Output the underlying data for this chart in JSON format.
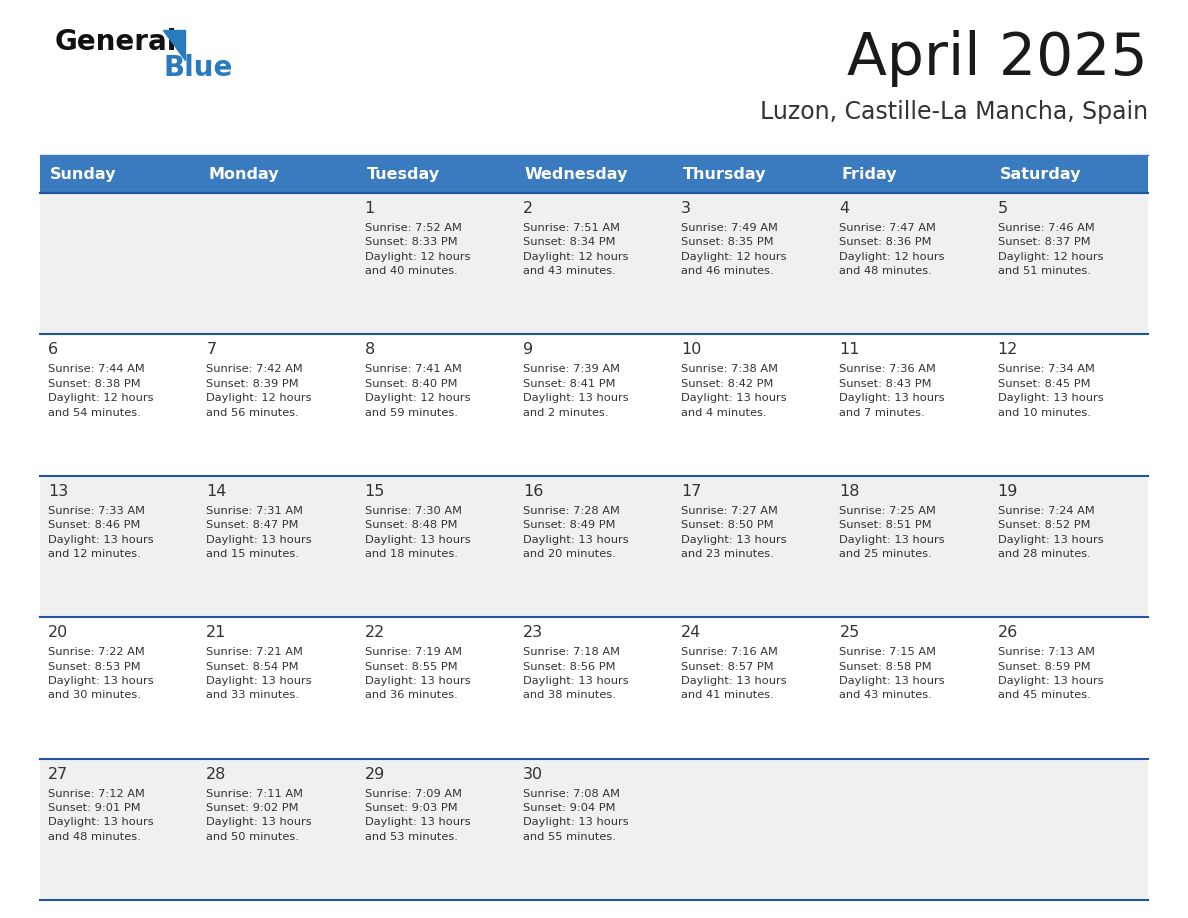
{
  "title": "April 2025",
  "subtitle": "Luzon, Castille-La Mancha, Spain",
  "header_bg": "#3a7abf",
  "header_text": "#ffffff",
  "row_bg_odd": "#f0f0f0",
  "row_bg_even": "#ffffff",
  "separator_color": "#2255a0",
  "text_color": "#333333",
  "days_of_week": [
    "Sunday",
    "Monday",
    "Tuesday",
    "Wednesday",
    "Thursday",
    "Friday",
    "Saturday"
  ],
  "weeks": [
    [
      {
        "day": "",
        "info": ""
      },
      {
        "day": "",
        "info": ""
      },
      {
        "day": "1",
        "info": "Sunrise: 7:52 AM\nSunset: 8:33 PM\nDaylight: 12 hours\nand 40 minutes."
      },
      {
        "day": "2",
        "info": "Sunrise: 7:51 AM\nSunset: 8:34 PM\nDaylight: 12 hours\nand 43 minutes."
      },
      {
        "day": "3",
        "info": "Sunrise: 7:49 AM\nSunset: 8:35 PM\nDaylight: 12 hours\nand 46 minutes."
      },
      {
        "day": "4",
        "info": "Sunrise: 7:47 AM\nSunset: 8:36 PM\nDaylight: 12 hours\nand 48 minutes."
      },
      {
        "day": "5",
        "info": "Sunrise: 7:46 AM\nSunset: 8:37 PM\nDaylight: 12 hours\nand 51 minutes."
      }
    ],
    [
      {
        "day": "6",
        "info": "Sunrise: 7:44 AM\nSunset: 8:38 PM\nDaylight: 12 hours\nand 54 minutes."
      },
      {
        "day": "7",
        "info": "Sunrise: 7:42 AM\nSunset: 8:39 PM\nDaylight: 12 hours\nand 56 minutes."
      },
      {
        "day": "8",
        "info": "Sunrise: 7:41 AM\nSunset: 8:40 PM\nDaylight: 12 hours\nand 59 minutes."
      },
      {
        "day": "9",
        "info": "Sunrise: 7:39 AM\nSunset: 8:41 PM\nDaylight: 13 hours\nand 2 minutes."
      },
      {
        "day": "10",
        "info": "Sunrise: 7:38 AM\nSunset: 8:42 PM\nDaylight: 13 hours\nand 4 minutes."
      },
      {
        "day": "11",
        "info": "Sunrise: 7:36 AM\nSunset: 8:43 PM\nDaylight: 13 hours\nand 7 minutes."
      },
      {
        "day": "12",
        "info": "Sunrise: 7:34 AM\nSunset: 8:45 PM\nDaylight: 13 hours\nand 10 minutes."
      }
    ],
    [
      {
        "day": "13",
        "info": "Sunrise: 7:33 AM\nSunset: 8:46 PM\nDaylight: 13 hours\nand 12 minutes."
      },
      {
        "day": "14",
        "info": "Sunrise: 7:31 AM\nSunset: 8:47 PM\nDaylight: 13 hours\nand 15 minutes."
      },
      {
        "day": "15",
        "info": "Sunrise: 7:30 AM\nSunset: 8:48 PM\nDaylight: 13 hours\nand 18 minutes."
      },
      {
        "day": "16",
        "info": "Sunrise: 7:28 AM\nSunset: 8:49 PM\nDaylight: 13 hours\nand 20 minutes."
      },
      {
        "day": "17",
        "info": "Sunrise: 7:27 AM\nSunset: 8:50 PM\nDaylight: 13 hours\nand 23 minutes."
      },
      {
        "day": "18",
        "info": "Sunrise: 7:25 AM\nSunset: 8:51 PM\nDaylight: 13 hours\nand 25 minutes."
      },
      {
        "day": "19",
        "info": "Sunrise: 7:24 AM\nSunset: 8:52 PM\nDaylight: 13 hours\nand 28 minutes."
      }
    ],
    [
      {
        "day": "20",
        "info": "Sunrise: 7:22 AM\nSunset: 8:53 PM\nDaylight: 13 hours\nand 30 minutes."
      },
      {
        "day": "21",
        "info": "Sunrise: 7:21 AM\nSunset: 8:54 PM\nDaylight: 13 hours\nand 33 minutes."
      },
      {
        "day": "22",
        "info": "Sunrise: 7:19 AM\nSunset: 8:55 PM\nDaylight: 13 hours\nand 36 minutes."
      },
      {
        "day": "23",
        "info": "Sunrise: 7:18 AM\nSunset: 8:56 PM\nDaylight: 13 hours\nand 38 minutes."
      },
      {
        "day": "24",
        "info": "Sunrise: 7:16 AM\nSunset: 8:57 PM\nDaylight: 13 hours\nand 41 minutes."
      },
      {
        "day": "25",
        "info": "Sunrise: 7:15 AM\nSunset: 8:58 PM\nDaylight: 13 hours\nand 43 minutes."
      },
      {
        "day": "26",
        "info": "Sunrise: 7:13 AM\nSunset: 8:59 PM\nDaylight: 13 hours\nand 45 minutes."
      }
    ],
    [
      {
        "day": "27",
        "info": "Sunrise: 7:12 AM\nSunset: 9:01 PM\nDaylight: 13 hours\nand 48 minutes."
      },
      {
        "day": "28",
        "info": "Sunrise: 7:11 AM\nSunset: 9:02 PM\nDaylight: 13 hours\nand 50 minutes."
      },
      {
        "day": "29",
        "info": "Sunrise: 7:09 AM\nSunset: 9:03 PM\nDaylight: 13 hours\nand 53 minutes."
      },
      {
        "day": "30",
        "info": "Sunrise: 7:08 AM\nSunset: 9:04 PM\nDaylight: 13 hours\nand 55 minutes."
      },
      {
        "day": "",
        "info": ""
      },
      {
        "day": "",
        "info": ""
      },
      {
        "day": "",
        "info": ""
      }
    ]
  ]
}
